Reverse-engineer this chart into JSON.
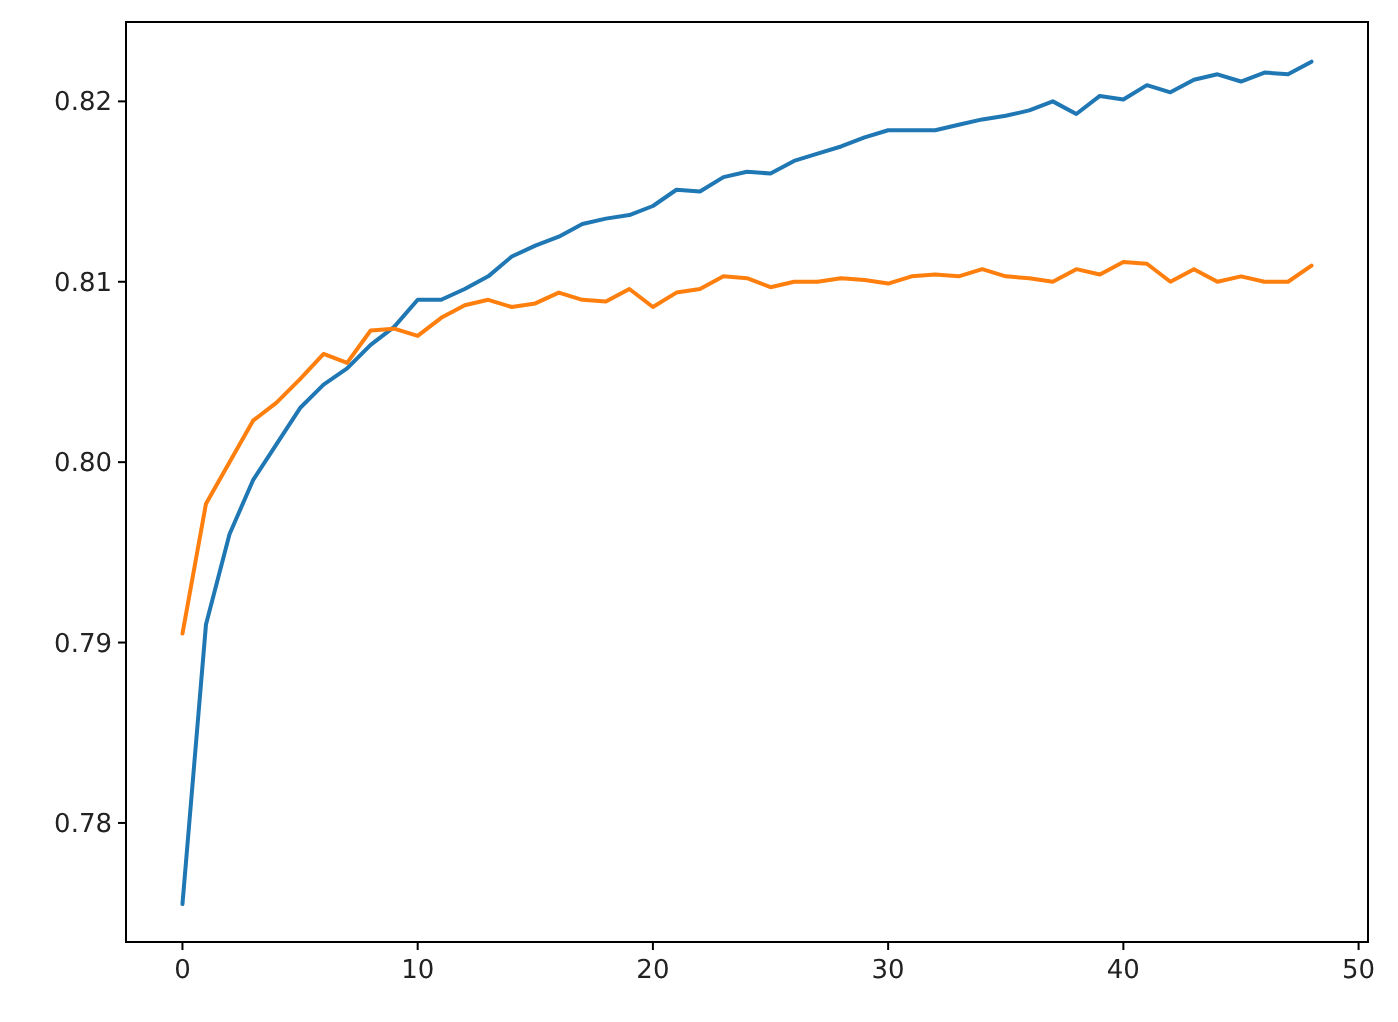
{
  "chart_data": {
    "type": "line",
    "x": [
      0,
      1,
      2,
      3,
      4,
      5,
      6,
      7,
      8,
      9,
      10,
      11,
      12,
      13,
      14,
      15,
      16,
      17,
      18,
      19,
      20,
      21,
      22,
      23,
      24,
      25,
      26,
      27,
      28,
      29,
      30,
      31,
      32,
      33,
      34,
      35,
      36,
      37,
      38,
      39,
      40,
      41,
      42,
      43,
      44,
      45,
      46,
      47,
      48
    ],
    "series": [
      {
        "color": "#1f77b4",
        "values": [
          0.7755,
          0.791,
          0.796,
          0.799,
          0.801,
          0.803,
          0.8043,
          0.8052,
          0.8065,
          0.8075,
          0.809,
          0.809,
          0.8096,
          0.8103,
          0.8114,
          0.812,
          0.8125,
          0.8132,
          0.8135,
          0.8137,
          0.8142,
          0.8151,
          0.815,
          0.8158,
          0.8161,
          0.816,
          0.8167,
          0.8171,
          0.8175,
          0.818,
          0.8184,
          0.8184,
          0.8184,
          0.8187,
          0.819,
          0.8192,
          0.8195,
          0.82,
          0.8193,
          0.8203,
          0.8201,
          0.8209,
          0.8205,
          0.8212,
          0.8215,
          0.8211,
          0.8216,
          0.8215,
          0.8222
        ]
      },
      {
        "color": "#ff7f0e",
        "values": [
          0.7905,
          0.7977,
          0.8,
          0.8023,
          0.8033,
          0.8046,
          0.806,
          0.8055,
          0.8073,
          0.8074,
          0.807,
          0.808,
          0.8087,
          0.809,
          0.8086,
          0.8088,
          0.8094,
          0.809,
          0.8089,
          0.8096,
          0.8086,
          0.8094,
          0.8096,
          0.8103,
          0.8102,
          0.8097,
          0.81,
          0.81,
          0.8102,
          0.8101,
          0.8099,
          0.8103,
          0.8104,
          0.8103,
          0.8107,
          0.8103,
          0.8102,
          0.81,
          0.8107,
          0.8104,
          0.8111,
          0.811,
          0.81,
          0.8107,
          0.81,
          0.8103,
          0.81,
          0.81,
          0.8109
        ]
      }
    ],
    "xlim": [
      -2.4,
      50.4
    ],
    "xticks": [
      0,
      10,
      20,
      30,
      40,
      50
    ],
    "ylim": [
      0.7734,
      0.8244
    ],
    "yticks": [
      {
        "value": 0.78,
        "label": "0.78"
      },
      {
        "value": 0.79,
        "label": "0.79"
      },
      {
        "value": 0.8,
        "label": "0.80"
      },
      {
        "value": 0.81,
        "label": "0.81"
      },
      {
        "value": 0.82,
        "label": "0.82"
      }
    ]
  }
}
